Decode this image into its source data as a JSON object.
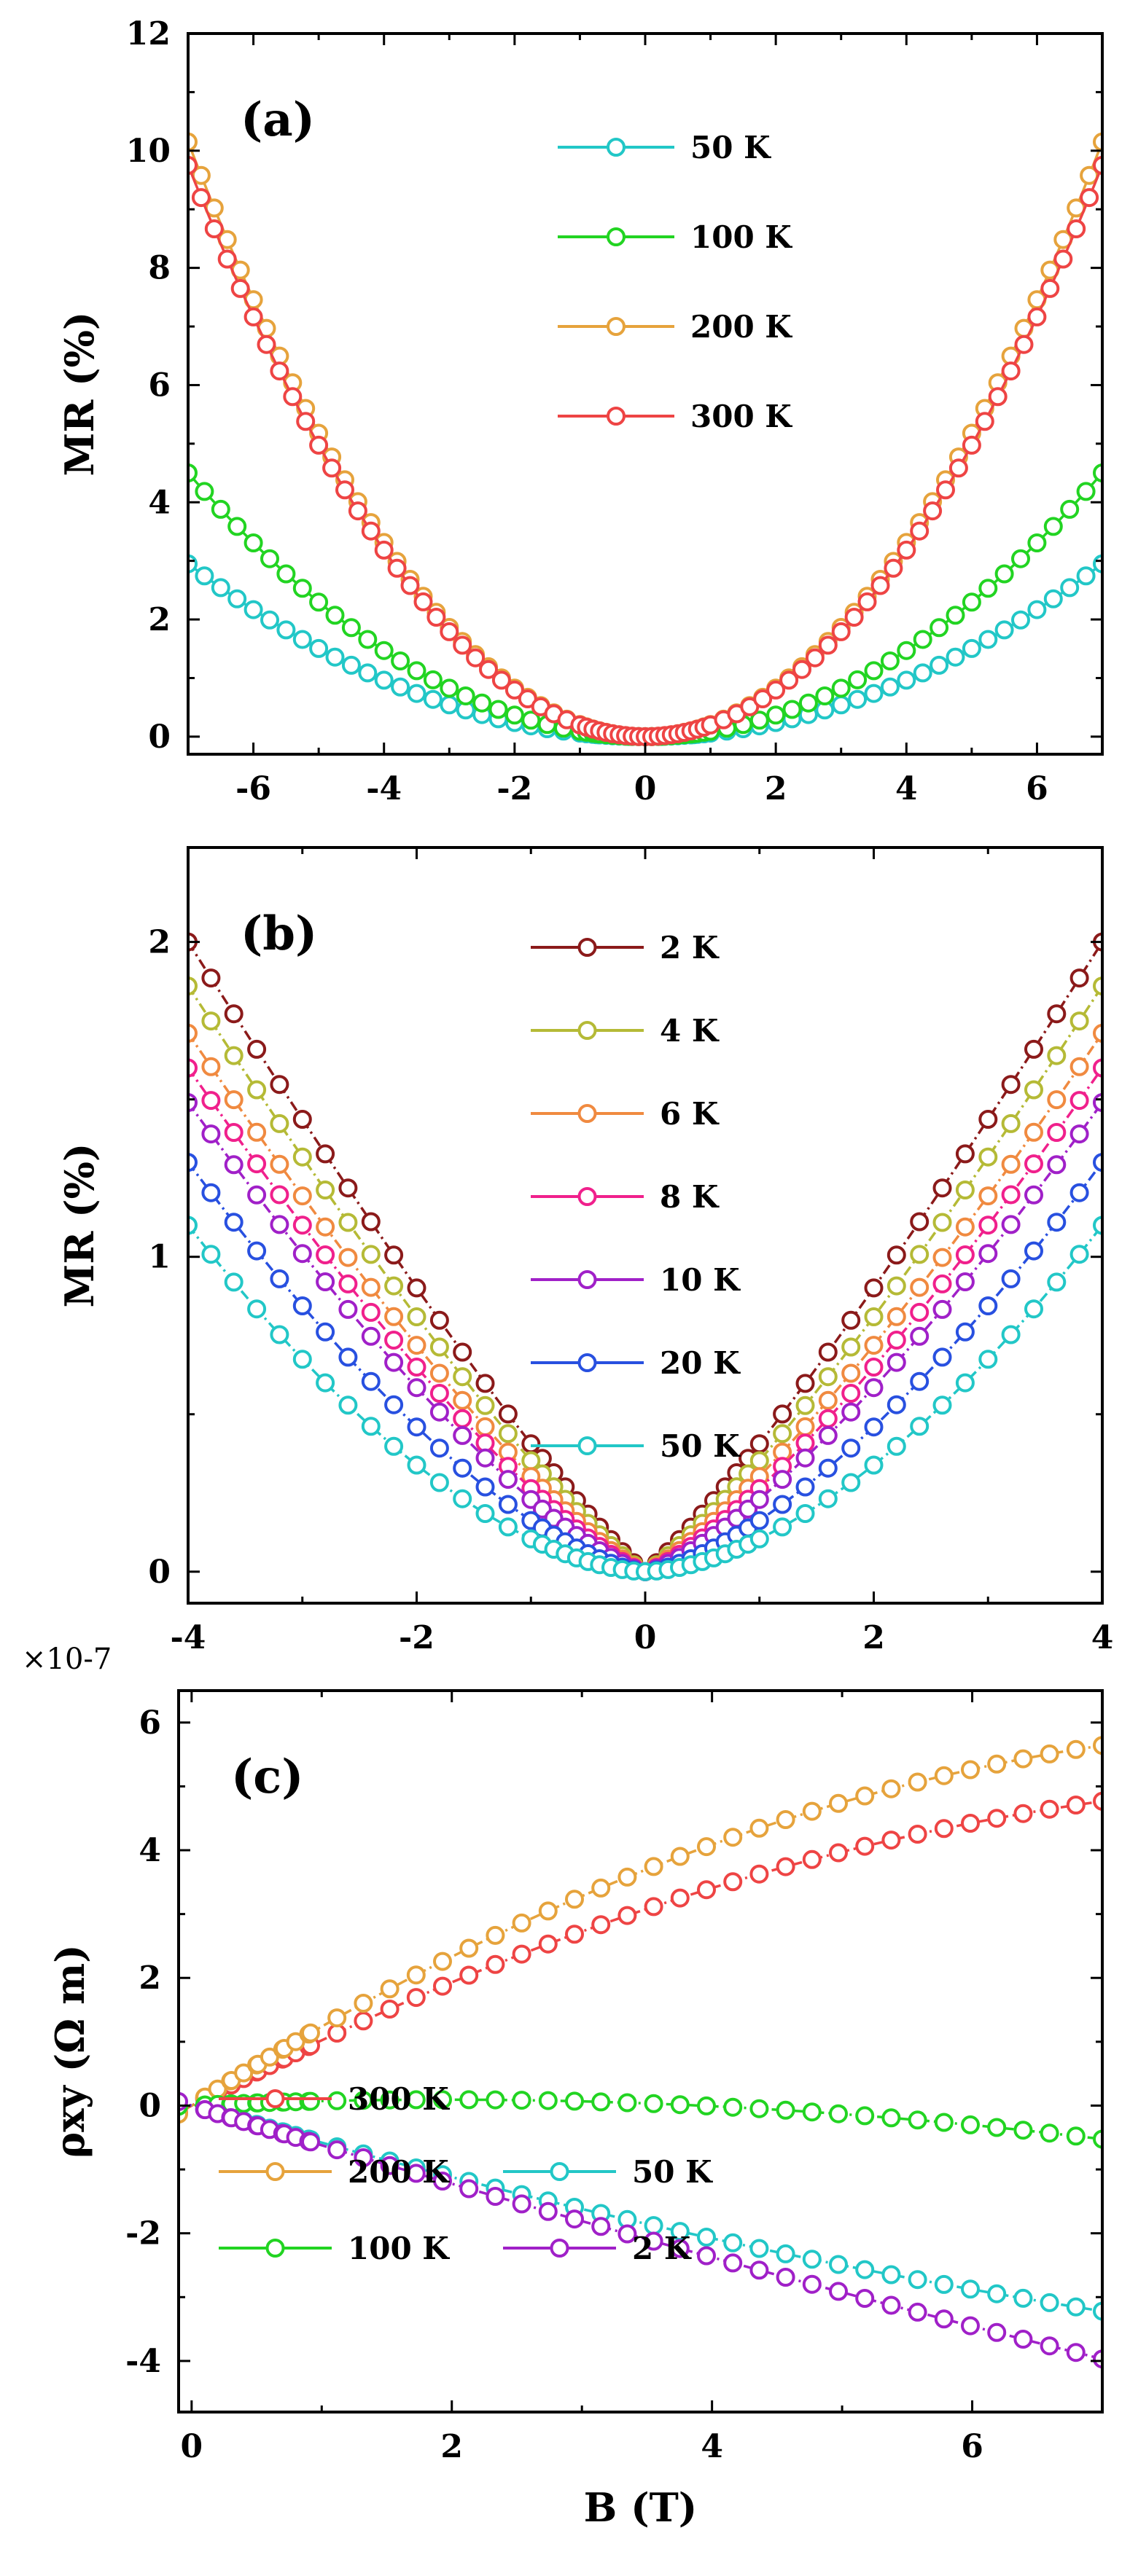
{
  "chart_data": [
    {
      "type": "line",
      "panel_label": "(a)",
      "title": "",
      "xlabel": "",
      "ylabel": "MR (%)",
      "xlim": [
        -7,
        7
      ],
      "ylim": [
        -0.3,
        12
      ],
      "xticks": [
        -6,
        -4,
        -2,
        0,
        2,
        4,
        6
      ],
      "xtick_labels": [
        "-6",
        "-4",
        "-2",
        "0",
        "2",
        "4",
        "6"
      ],
      "yticks": [
        0,
        2,
        4,
        6,
        8,
        10,
        12
      ],
      "ytick_labels": [
        "0",
        "2",
        "4",
        "6",
        "8",
        "10",
        "12"
      ],
      "legend_position": "top-center",
      "series": [
        {
          "name": "50 K",
          "color": "#22c7c7",
          "model": "parabolic",
          "coef": 2.95,
          "exponent": 2,
          "x_step": 0.25
        },
        {
          "name": "100 K",
          "color": "#22d422",
          "model": "parabolic",
          "coef": 4.5,
          "exponent": 2,
          "x_step": 0.25
        },
        {
          "name": "200 K",
          "color": "#e6a33c",
          "model": "parabolic",
          "coef": 10.15,
          "exponent": 2,
          "x_step": 0.2
        },
        {
          "name": "300 K",
          "color": "#ee4444",
          "model": "parabolic",
          "coef": 9.75,
          "exponent": 2,
          "x_step": 0.2
        }
      ]
    },
    {
      "type": "line",
      "panel_label": "(b)",
      "title": "",
      "xlabel": "",
      "ylabel": "MR (%)",
      "xlim": [
        -4,
        4
      ],
      "ylim": [
        -0.1,
        2.3
      ],
      "xticks": [
        -4,
        -2,
        0,
        2,
        4
      ],
      "xtick_labels": [
        "-4",
        "-2",
        "0",
        "2",
        "4"
      ],
      "yticks": [
        0,
        1,
        2
      ],
      "ytick_labels": [
        "0",
        "1",
        "2"
      ],
      "legend_position": "top-center",
      "series": [
        {
          "name": "2 K",
          "color": "#8b1a1a",
          "model": "power",
          "coef": 2.0,
          "exponent": 1.15,
          "x_step": 0.2
        },
        {
          "name": "4 K",
          "color": "#b5ba36",
          "model": "power",
          "coef": 1.86,
          "exponent": 1.2,
          "x_step": 0.2
        },
        {
          "name": "6 K",
          "color": "#f08a40",
          "model": "power",
          "coef": 1.71,
          "exponent": 1.25,
          "x_step": 0.2
        },
        {
          "name": "8 K",
          "color": "#f0208c",
          "model": "power",
          "coef": 1.6,
          "exponent": 1.3,
          "x_step": 0.2
        },
        {
          "name": "10 K",
          "color": "#a020c8",
          "model": "power",
          "coef": 1.49,
          "exponent": 1.35,
          "x_step": 0.2
        },
        {
          "name": "20 K",
          "color": "#2850e0",
          "model": "power",
          "coef": 1.3,
          "exponent": 1.5,
          "x_step": 0.2
        },
        {
          "name": "50 K",
          "color": "#22c7c7",
          "model": "power",
          "coef": 1.1,
          "exponent": 1.7,
          "x_step": 0.2
        }
      ]
    },
    {
      "type": "line",
      "panel_label": "(c)",
      "title": "",
      "xlabel": "B (T)",
      "ylabel": "ρxy (Ω m)",
      "y_multiplier": "×10-7",
      "xlim": [
        -0.1,
        7
      ],
      "ylim": [
        -4.8,
        6.5
      ],
      "xticks": [
        0,
        2,
        4,
        6
      ],
      "xtick_labels": [
        "0",
        "2",
        "4",
        "6"
      ],
      "yticks": [
        -4,
        -2,
        0,
        2,
        4,
        6
      ],
      "ytick_labels": [
        "-4",
        "-2",
        "0",
        "2",
        "4",
        "6"
      ],
      "legend_position": "bottom-left",
      "series": [
        {
          "name": "300 K",
          "color": "#ee4444",
          "model": "hall",
          "a": 1.08,
          "b": -0.057,
          "c": 0,
          "x_step": 0.2
        },
        {
          "name": "200 K",
          "color": "#e6a33c",
          "model": "hall",
          "a": 1.31,
          "b": -0.072,
          "c": 0,
          "x_step": 0.2
        },
        {
          "name": "50 K",
          "color": "#22c7c7",
          "model": "hall",
          "a": -0.6,
          "b": 0.02,
          "c": 0,
          "x_step": 0.2
        },
        {
          "name": "100 K",
          "color": "#22d422",
          "model": "hall",
          "a": 0.095,
          "b": -0.0243,
          "c": 0,
          "x_step": 0.2
        },
        {
          "name": "2 K",
          "color": "#a020c8",
          "model": "hall",
          "a": -0.63,
          "b": 0.009,
          "c": 0,
          "x_step": 0.2
        }
      ]
    }
  ]
}
